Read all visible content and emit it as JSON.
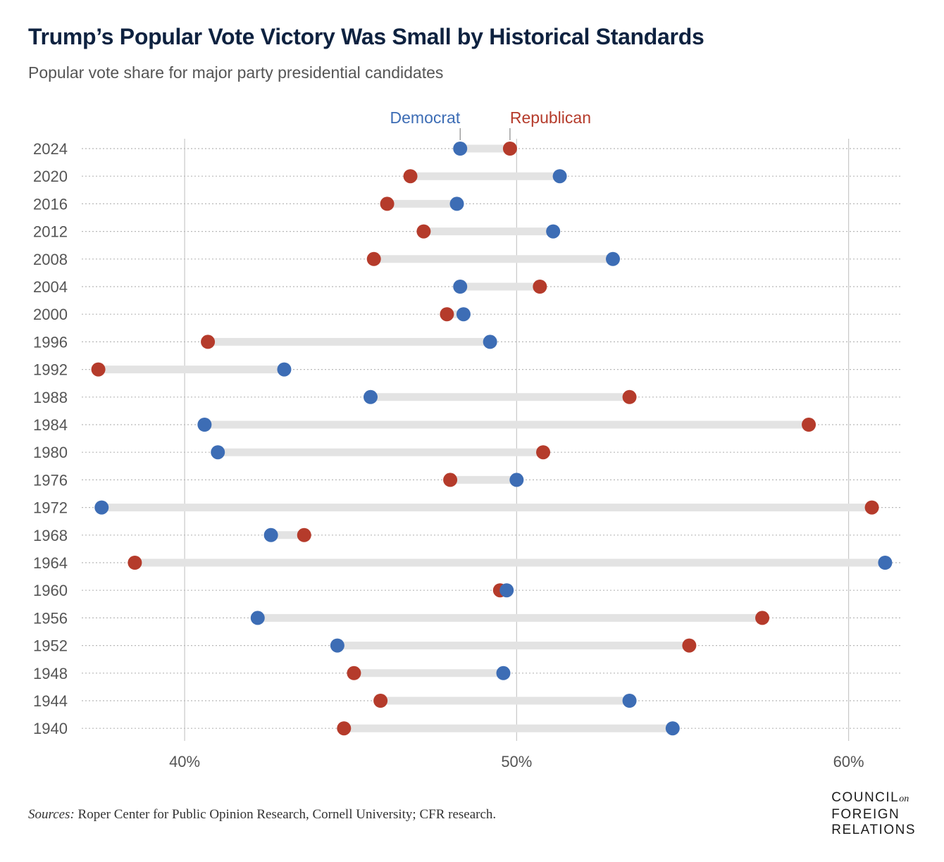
{
  "header": {
    "title": "Trump’s Popular Vote Victory Was Small by Historical Standards",
    "subtitle": "Popular vote share for major party presidential candidates"
  },
  "footer": {
    "sources_label": "Sources:",
    "sources_text": " Roper Center for Public Opinion Research, Cornell University; CFR research."
  },
  "logo": {
    "line1": "COUNCIL",
    "line1_small": "on",
    "line2": "FOREIGN",
    "line3": "RELATIONS"
  },
  "colors": {
    "democrat": "#3d6db5",
    "republican": "#b53b2b",
    "connector": "#e3e3e3",
    "grid": "#c8c8c8",
    "dotted": "#b8b8b8"
  },
  "chart_data": {
    "type": "dumbbell",
    "title": "Trump’s Popular Vote Victory Was Small by Historical Standards",
    "xlim": [
      36.9,
      61.6
    ],
    "xticks": [
      40,
      50,
      60
    ],
    "xtick_labels": [
      "40%",
      "50%",
      "60%"
    ],
    "legend": {
      "democrat": "Democrat",
      "republican": "Republican"
    },
    "categories": [
      "2024",
      "2020",
      "2016",
      "2012",
      "2008",
      "2004",
      "2000",
      "1996",
      "1992",
      "1988",
      "1984",
      "1980",
      "1976",
      "1972",
      "1968",
      "1964",
      "1960",
      "1956",
      "1952",
      "1948",
      "1944",
      "1940"
    ],
    "series": [
      {
        "name": "Democrat",
        "values": [
          48.3,
          51.3,
          48.2,
          51.1,
          52.9,
          48.3,
          48.4,
          49.2,
          43.0,
          45.6,
          40.6,
          41.0,
          50.0,
          37.5,
          42.6,
          61.1,
          49.7,
          42.2,
          44.6,
          49.6,
          53.4,
          54.7
        ]
      },
      {
        "name": "Republican",
        "values": [
          49.8,
          46.8,
          46.1,
          47.2,
          45.7,
          50.7,
          47.9,
          40.7,
          37.4,
          53.4,
          58.8,
          50.8,
          48.0,
          60.7,
          43.6,
          38.5,
          49.5,
          57.4,
          55.2,
          45.1,
          45.9,
          44.8
        ]
      }
    ]
  }
}
